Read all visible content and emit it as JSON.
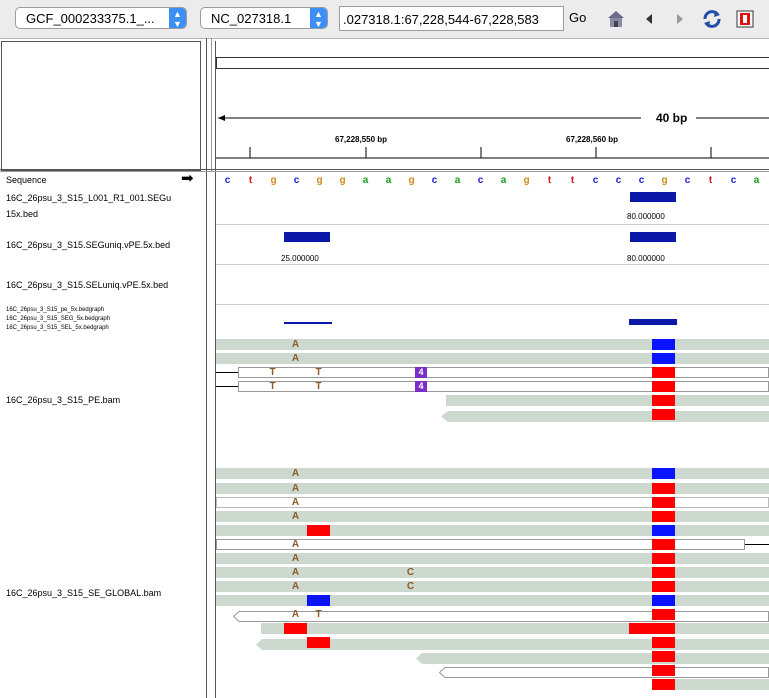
{
  "toolbar": {
    "genome": "GCF_000233375.1_...",
    "chromosome": "NC_027318.1",
    "locus": ".027318.1:67,228,544-67,228,583",
    "go_label": "Go"
  },
  "ruler": {
    "span_label": "40 bp",
    "tick_labels": [
      "67,228,550 bp",
      "67,228,560 bp"
    ]
  },
  "sequence": {
    "label": "Sequence",
    "bases": [
      "c",
      "t",
      "g",
      "c",
      "g",
      "g",
      "a",
      "a",
      "g",
      "c",
      "a",
      "c",
      "a",
      "g",
      "t",
      "t",
      "c",
      "c",
      "c",
      "g",
      "c",
      "t",
      "c",
      "a"
    ]
  },
  "tracks": {
    "bed1_line1": "16C_26psu_3_S15_L001_R1_001.SEGu",
    "bed1_line2": "15x.bed",
    "bed1_value": "80.000000",
    "bed2": "16C_26psu_3_S15.SEGuniq.vPE.5x.bed",
    "bed2_value_a": "25.000000",
    "bed2_value_b": "80.000000",
    "bed3": "16C_26psu_3_S15.SELuniq.vPE.5x.bed",
    "bedgraph_1": "16C_26psu_3_S15_pe_5x.bedgraph",
    "bedgraph_2": "16C_26psu_3_S15_SEG_5x.bedgraph",
    "bedgraph_3": "16C_26psu_3_S15_SEL_5x.bedgraph",
    "bam_pe": "16C_26psu_3_S15_PE.bam",
    "bam_se": "16C_26psu_3_S15_SE_GLOBAL.bam"
  },
  "alignment_text": {
    "a": "A",
    "t": "T",
    "c": "C",
    "ins": "4"
  },
  "colors": {
    "base_a": "#1a9a1a",
    "base_c": "#1a1ad0",
    "base_g": "#d18a1a",
    "base_t": "#d81a1a",
    "read_fill": "#cdd9cf",
    "feature": "#0b18a8",
    "mismatch_red": "#ff0000",
    "mismatch_blue": "#0a14ff",
    "insertion": "#7b2fc8",
    "mismatch_letter": "#8b5a2b"
  }
}
